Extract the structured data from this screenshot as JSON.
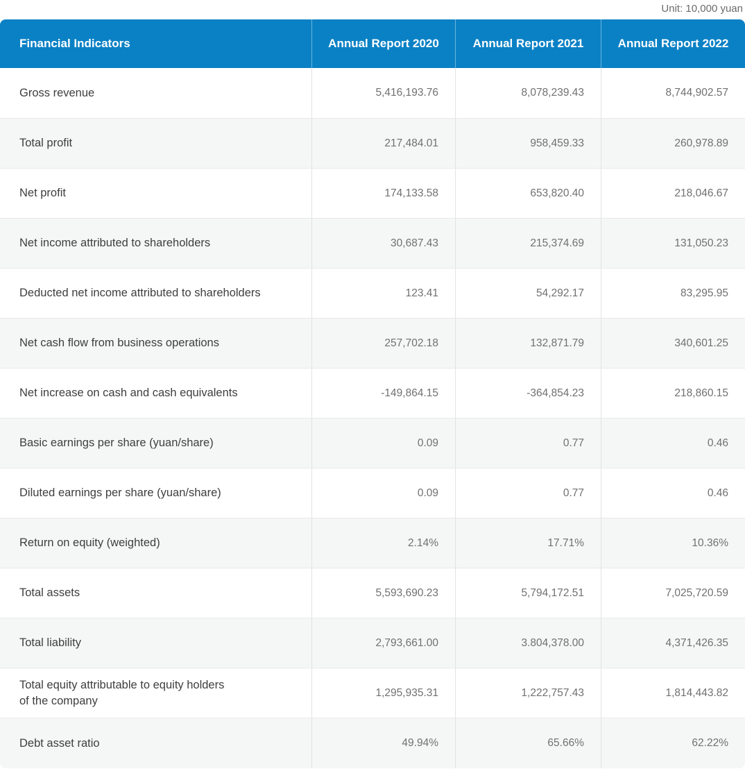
{
  "unit_note": "Unit: 10,000 yuan",
  "colors": {
    "header_bg": "#0A81C5",
    "header_text": "#FFFFFF",
    "row_alt_bg": "#F5F6F6",
    "row_border": "#E9E9E9",
    "column_border": "#E3E3E3",
    "label_text": "#3E3E3E",
    "value_text": "#707070",
    "unit_text": "#6B6B6B"
  },
  "chart_data": {
    "type": "table",
    "title": "Financial Indicators",
    "unit": "Unit: 10,000 yuan",
    "columns": [
      "Financial Indicators",
      "Annual Report 2020",
      "Annual Report 2021",
      "Annual Report 2022"
    ],
    "rows": [
      {
        "label": "Gross revenue",
        "values": [
          "5,416,193.76",
          "8,078,239.43",
          "8,744,902.57"
        ]
      },
      {
        "label": "Total profit",
        "values": [
          "217,484.01",
          "958,459.33",
          "260,978.89"
        ]
      },
      {
        "label": "Net profit",
        "values": [
          "174,133.58",
          "653,820.40",
          "218,046.67"
        ]
      },
      {
        "label": "Net income attributed to shareholders",
        "values": [
          "30,687.43",
          "215,374.69",
          "131,050.23"
        ]
      },
      {
        "label": "Deducted net income attributed to shareholders",
        "values": [
          "123.41",
          "54,292.17",
          "83,295.95"
        ]
      },
      {
        "label": "Net cash flow from business operations",
        "values": [
          "257,702.18",
          "132,871.79",
          "340,601.25"
        ]
      },
      {
        "label": "Net increase on cash and cash equivalents",
        "values": [
          "-149,864.15",
          "-364,854.23",
          "218,860.15"
        ]
      },
      {
        "label": "Basic earnings per share (yuan/share)",
        "values": [
          "0.09",
          "0.77",
          "0.46"
        ]
      },
      {
        "label": "Diluted earnings per share (yuan/share)",
        "values": [
          "0.09",
          "0.77",
          "0.46"
        ]
      },
      {
        "label": "Return on equity (weighted)",
        "values": [
          "2.14%",
          "17.71%",
          "10.36%"
        ]
      },
      {
        "label": "Total assets",
        "values": [
          "5,593,690.23",
          "5,794,172.51",
          "7,025,720.59"
        ]
      },
      {
        "label": "Total liability",
        "values": [
          "2,793,661.00",
          "3.804,378.00",
          "4,371,426.35"
        ]
      },
      {
        "label": "Total equity attributable to equity holders\nof the company",
        "values": [
          "1,295,935.31",
          "1,222,757.43",
          "1,814,443.82"
        ]
      },
      {
        "label": "Debt asset ratio",
        "values": [
          "49.94%",
          "65.66%",
          "62.22%"
        ]
      }
    ]
  }
}
